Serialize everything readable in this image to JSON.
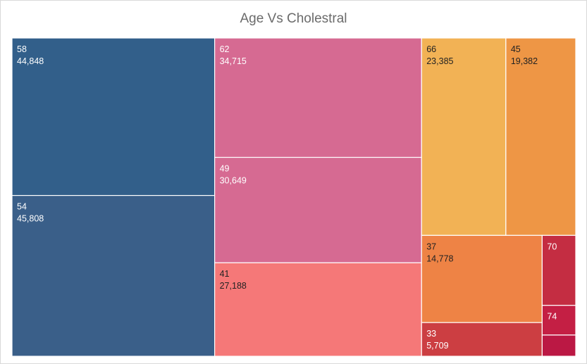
{
  "chart_data": {
    "type": "treemap",
    "title": "Age Vs Cholestral",
    "items": [
      {
        "name": "58",
        "value": 44848,
        "value_label": "44,848",
        "color": "#325f8a",
        "text_color": "#ffffff",
        "show_value": true
      },
      {
        "name": "54",
        "value": 45808,
        "value_label": "45,808",
        "color": "#3a5f89",
        "text_color": "#ffffff",
        "show_value": true
      },
      {
        "name": "62",
        "value": 34715,
        "value_label": "34,715",
        "color": "#d66a92",
        "text_color": "#ffffff",
        "show_value": true
      },
      {
        "name": "49",
        "value": 30649,
        "value_label": "30,649",
        "color": "#d66a92",
        "text_color": "#ffffff",
        "show_value": true
      },
      {
        "name": "41",
        "value": 27188,
        "value_label": "27,188",
        "color": "#f57878",
        "text_color": "#222222",
        "show_value": true
      },
      {
        "name": "66",
        "value": 23385,
        "value_label": "23,385",
        "color": "#f2b255",
        "text_color": "#222222",
        "show_value": true
      },
      {
        "name": "45",
        "value": 19382,
        "value_label": "19,382",
        "color": "#ee9645",
        "text_color": "#222222",
        "show_value": true
      },
      {
        "name": "37",
        "value": 14778,
        "value_label": "14,778",
        "color": "#ee8345",
        "text_color": "#222222",
        "show_value": true
      },
      {
        "name": "33",
        "value": 5709,
        "value_label": "5,709",
        "color": "#cc3e42",
        "text_color": "#ffffff",
        "show_value": true
      },
      {
        "name": "70",
        "value": 3300,
        "value_label": "",
        "color": "#c42d42",
        "text_color": "#ffffff",
        "show_value": false
      },
      {
        "name": "74",
        "value": 1400,
        "value_label": "",
        "color": "#c41f44",
        "text_color": "#ffffff",
        "show_value": false
      },
      {
        "name": "",
        "value": 1000,
        "value_label": "",
        "color": "#bb1844",
        "text_color": "#ffffff",
        "show_value": false
      }
    ]
  }
}
